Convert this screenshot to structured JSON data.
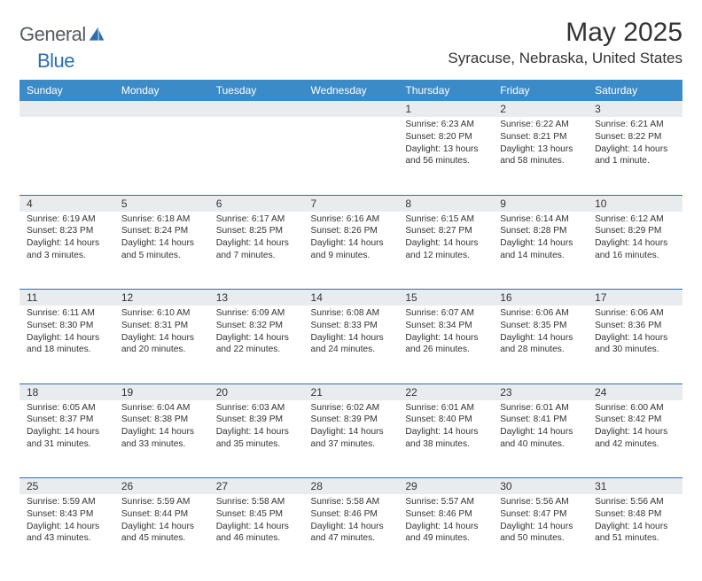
{
  "brand": {
    "word1": "General",
    "word2": "Blue"
  },
  "title": "May 2025",
  "location": "Syracuse, Nebraska, United States",
  "colors": {
    "header_bg": "#3b8bc9",
    "header_text": "#ffffff",
    "daynum_bg": "#e9ecef",
    "border": "#2b6fb0",
    "brand_gray": "#555b60",
    "brand_blue": "#2b6fb0",
    "text": "#333333",
    "page_bg": "#ffffff"
  },
  "typography": {
    "title_fontsize": 30,
    "location_fontsize": 17,
    "weekday_fontsize": 12,
    "cell_fontsize": 10.2,
    "logo_fontsize": 22
  },
  "weekdays": [
    "Sunday",
    "Monday",
    "Tuesday",
    "Wednesday",
    "Thursday",
    "Friday",
    "Saturday"
  ],
  "weeks": [
    [
      null,
      null,
      null,
      null,
      {
        "day": "1",
        "sunrise": "Sunrise: 6:23 AM",
        "sunset": "Sunset: 8:20 PM",
        "daylight": "Daylight: 13 hours and 56 minutes."
      },
      {
        "day": "2",
        "sunrise": "Sunrise: 6:22 AM",
        "sunset": "Sunset: 8:21 PM",
        "daylight": "Daylight: 13 hours and 58 minutes."
      },
      {
        "day": "3",
        "sunrise": "Sunrise: 6:21 AM",
        "sunset": "Sunset: 8:22 PM",
        "daylight": "Daylight: 14 hours and 1 minute."
      }
    ],
    [
      {
        "day": "4",
        "sunrise": "Sunrise: 6:19 AM",
        "sunset": "Sunset: 8:23 PM",
        "daylight": "Daylight: 14 hours and 3 minutes."
      },
      {
        "day": "5",
        "sunrise": "Sunrise: 6:18 AM",
        "sunset": "Sunset: 8:24 PM",
        "daylight": "Daylight: 14 hours and 5 minutes."
      },
      {
        "day": "6",
        "sunrise": "Sunrise: 6:17 AM",
        "sunset": "Sunset: 8:25 PM",
        "daylight": "Daylight: 14 hours and 7 minutes."
      },
      {
        "day": "7",
        "sunrise": "Sunrise: 6:16 AM",
        "sunset": "Sunset: 8:26 PM",
        "daylight": "Daylight: 14 hours and 9 minutes."
      },
      {
        "day": "8",
        "sunrise": "Sunrise: 6:15 AM",
        "sunset": "Sunset: 8:27 PM",
        "daylight": "Daylight: 14 hours and 12 minutes."
      },
      {
        "day": "9",
        "sunrise": "Sunrise: 6:14 AM",
        "sunset": "Sunset: 8:28 PM",
        "daylight": "Daylight: 14 hours and 14 minutes."
      },
      {
        "day": "10",
        "sunrise": "Sunrise: 6:12 AM",
        "sunset": "Sunset: 8:29 PM",
        "daylight": "Daylight: 14 hours and 16 minutes."
      }
    ],
    [
      {
        "day": "11",
        "sunrise": "Sunrise: 6:11 AM",
        "sunset": "Sunset: 8:30 PM",
        "daylight": "Daylight: 14 hours and 18 minutes."
      },
      {
        "day": "12",
        "sunrise": "Sunrise: 6:10 AM",
        "sunset": "Sunset: 8:31 PM",
        "daylight": "Daylight: 14 hours and 20 minutes."
      },
      {
        "day": "13",
        "sunrise": "Sunrise: 6:09 AM",
        "sunset": "Sunset: 8:32 PM",
        "daylight": "Daylight: 14 hours and 22 minutes."
      },
      {
        "day": "14",
        "sunrise": "Sunrise: 6:08 AM",
        "sunset": "Sunset: 8:33 PM",
        "daylight": "Daylight: 14 hours and 24 minutes."
      },
      {
        "day": "15",
        "sunrise": "Sunrise: 6:07 AM",
        "sunset": "Sunset: 8:34 PM",
        "daylight": "Daylight: 14 hours and 26 minutes."
      },
      {
        "day": "16",
        "sunrise": "Sunrise: 6:06 AM",
        "sunset": "Sunset: 8:35 PM",
        "daylight": "Daylight: 14 hours and 28 minutes."
      },
      {
        "day": "17",
        "sunrise": "Sunrise: 6:06 AM",
        "sunset": "Sunset: 8:36 PM",
        "daylight": "Daylight: 14 hours and 30 minutes."
      }
    ],
    [
      {
        "day": "18",
        "sunrise": "Sunrise: 6:05 AM",
        "sunset": "Sunset: 8:37 PM",
        "daylight": "Daylight: 14 hours and 31 minutes."
      },
      {
        "day": "19",
        "sunrise": "Sunrise: 6:04 AM",
        "sunset": "Sunset: 8:38 PM",
        "daylight": "Daylight: 14 hours and 33 minutes."
      },
      {
        "day": "20",
        "sunrise": "Sunrise: 6:03 AM",
        "sunset": "Sunset: 8:39 PM",
        "daylight": "Daylight: 14 hours and 35 minutes."
      },
      {
        "day": "21",
        "sunrise": "Sunrise: 6:02 AM",
        "sunset": "Sunset: 8:39 PM",
        "daylight": "Daylight: 14 hours and 37 minutes."
      },
      {
        "day": "22",
        "sunrise": "Sunrise: 6:01 AM",
        "sunset": "Sunset: 8:40 PM",
        "daylight": "Daylight: 14 hours and 38 minutes."
      },
      {
        "day": "23",
        "sunrise": "Sunrise: 6:01 AM",
        "sunset": "Sunset: 8:41 PM",
        "daylight": "Daylight: 14 hours and 40 minutes."
      },
      {
        "day": "24",
        "sunrise": "Sunrise: 6:00 AM",
        "sunset": "Sunset: 8:42 PM",
        "daylight": "Daylight: 14 hours and 42 minutes."
      }
    ],
    [
      {
        "day": "25",
        "sunrise": "Sunrise: 5:59 AM",
        "sunset": "Sunset: 8:43 PM",
        "daylight": "Daylight: 14 hours and 43 minutes."
      },
      {
        "day": "26",
        "sunrise": "Sunrise: 5:59 AM",
        "sunset": "Sunset: 8:44 PM",
        "daylight": "Daylight: 14 hours and 45 minutes."
      },
      {
        "day": "27",
        "sunrise": "Sunrise: 5:58 AM",
        "sunset": "Sunset: 8:45 PM",
        "daylight": "Daylight: 14 hours and 46 minutes."
      },
      {
        "day": "28",
        "sunrise": "Sunrise: 5:58 AM",
        "sunset": "Sunset: 8:46 PM",
        "daylight": "Daylight: 14 hours and 47 minutes."
      },
      {
        "day": "29",
        "sunrise": "Sunrise: 5:57 AM",
        "sunset": "Sunset: 8:46 PM",
        "daylight": "Daylight: 14 hours and 49 minutes."
      },
      {
        "day": "30",
        "sunrise": "Sunrise: 5:56 AM",
        "sunset": "Sunset: 8:47 PM",
        "daylight": "Daylight: 14 hours and 50 minutes."
      },
      {
        "day": "31",
        "sunrise": "Sunrise: 5:56 AM",
        "sunset": "Sunset: 8:48 PM",
        "daylight": "Daylight: 14 hours and 51 minutes."
      }
    ]
  ]
}
